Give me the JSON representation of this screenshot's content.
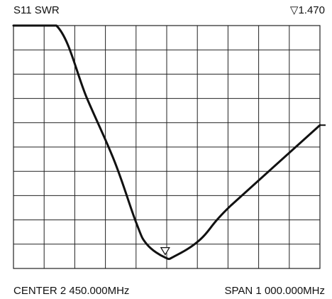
{
  "header": {
    "trace_label": "S11 SWR",
    "marker_symbol": "▽",
    "marker_value": "1.470"
  },
  "footer": {
    "center": "CENTER 2 450.000MHz",
    "span": "SPAN 1 000.000MHz"
  },
  "chart_data": {
    "type": "line",
    "title": "S11 SWR",
    "xlabel": "",
    "ylabel": "",
    "x_center_mhz": 2450,
    "x_span_mhz": 1000,
    "xlim": [
      1950,
      2950
    ],
    "ylim": [
      0,
      10
    ],
    "grid": true,
    "x_divisions": 10,
    "y_divisions": 10,
    "y_unit": "grid divisions (no scale printed)",
    "series": [
      {
        "points": [
          [
            1950,
            10.0
          ],
          [
            2090,
            10.0
          ],
          [
            2190,
            7.0
          ],
          [
            2280,
            4.4
          ],
          [
            2350,
            1.9
          ],
          [
            2385,
            1.0
          ],
          [
            2445,
            0.45
          ],
          [
            2475,
            0.5
          ],
          [
            2560,
            1.2
          ],
          [
            2660,
            2.6
          ],
          [
            2950,
            5.9
          ]
        ]
      }
    ],
    "marker": {
      "x": 2445,
      "value": "1.470"
    },
    "colors": {
      "trace": "#111111",
      "grid": "#222222",
      "background": "#ffffff"
    }
  }
}
